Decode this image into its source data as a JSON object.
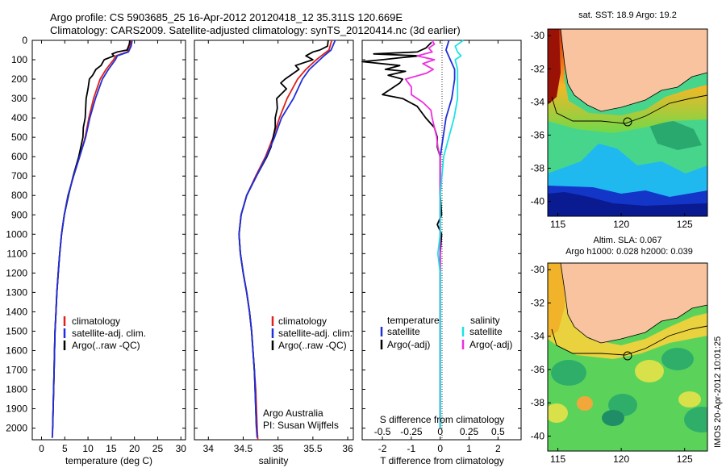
{
  "header": {
    "line1": "Argo profile: CS 5903685_25 16-Apr-2012 20120418_12 35.311S 120.669E",
    "line2": "Climatology: CARS2009. Satellite-adjusted climatology: synTS_20120414.nc (3d earlier)"
  },
  "side_label": "IMOS 20-Apr-2012 10:01:25",
  "colors": {
    "clim": "#e0201a",
    "sat": "#1f2fdc",
    "argo": "#000000",
    "sal_sat": "#1ce3e3",
    "sal_argo": "#ee2ee0",
    "land": "#f8c39e"
  },
  "chart_data": [
    {
      "type": "line",
      "id": "temperature",
      "xlabel": "temperature (deg C)",
      "ylabel": "",
      "xlim": [
        -2,
        31
      ],
      "ylim": [
        2060,
        0
      ],
      "xticks": [
        0,
        5,
        10,
        15,
        20,
        25,
        30
      ],
      "yticks": [
        0,
        100,
        200,
        300,
        400,
        500,
        600,
        700,
        800,
        900,
        1000,
        1100,
        1200,
        1300,
        1400,
        1500,
        1600,
        1700,
        1800,
        1900,
        2000
      ],
      "legend": [
        "climatology",
        "satellite-adj. clim.",
        "Argo(..raw -QC)"
      ],
      "series": [
        {
          "name": "climatology",
          "color": "clim",
          "depth": [
            0,
            30,
            60,
            80,
            100,
            150,
            200,
            300,
            400,
            500,
            600,
            700,
            800,
            900,
            1000,
            1100,
            1200,
            1300,
            1400,
            1500,
            1600,
            1700,
            1800,
            1900,
            2000,
            2050
          ],
          "values": [
            19.2,
            19.1,
            18.5,
            16.0,
            15.5,
            13.9,
            12.6,
            11.2,
            10.2,
            9.4,
            8.2,
            6.9,
            5.7,
            4.9,
            4.3,
            3.9,
            3.6,
            3.3,
            3.1,
            2.9,
            2.8,
            2.7,
            2.6,
            2.5,
            2.4,
            2.3
          ]
        },
        {
          "name": "satellite-adj. clim.",
          "color": "sat",
          "depth": [
            0,
            30,
            60,
            80,
            100,
            150,
            200,
            300,
            400,
            500,
            600,
            700,
            800,
            900,
            1000,
            1100,
            1200,
            1300,
            1400,
            1500,
            1600,
            1700,
            1800,
            1900,
            2000,
            2050
          ],
          "values": [
            19.5,
            19.3,
            18.7,
            16.3,
            15.9,
            14.4,
            13.1,
            11.6,
            10.4,
            9.5,
            8.2,
            6.9,
            5.7,
            4.9,
            4.3,
            3.9,
            3.6,
            3.3,
            3.1,
            2.9,
            2.8,
            2.7,
            2.6,
            2.5,
            2.4,
            2.3
          ]
        },
        {
          "name": "Argo(..raw -QC)",
          "color": "argo",
          "depth": [
            0,
            20,
            50,
            60,
            70,
            80,
            100,
            130,
            150,
            180,
            200,
            250,
            300,
            350,
            400,
            450,
            500,
            600,
            700,
            800,
            900,
            1000,
            1100,
            1200,
            1300,
            1400,
            1500,
            1600,
            1700,
            1800,
            1900,
            2000
          ],
          "values": [
            19.0,
            18.9,
            18.4,
            16.3,
            15.2,
            15.6,
            13.5,
            12.8,
            11.7,
            11.0,
            10.3,
            10.0,
            9.6,
            9.5,
            9.4,
            9.0,
            8.9,
            8.0,
            6.8,
            5.8,
            4.9,
            4.3,
            3.9,
            3.6,
            3.3,
            3.1,
            2.9,
            2.8,
            2.7,
            2.6,
            2.5,
            2.4
          ]
        }
      ]
    },
    {
      "type": "line",
      "id": "salinity",
      "xlabel": "salinity",
      "xlim": [
        33.8,
        36.08
      ],
      "ylim": [
        2060,
        0
      ],
      "xticks": [
        34,
        34.5,
        35,
        35.5,
        36
      ],
      "xtick_labels": [
        "34",
        "34.5",
        "35",
        "35.5",
        "36"
      ],
      "legend": [
        "climatology",
        "satellite-adj. clim.",
        "Argo(..raw -QC)"
      ],
      "annotation": [
        "Argo Australia",
        "PI: Susan Wijffels"
      ],
      "series": [
        {
          "name": "climatology",
          "color": "clim",
          "depth": [
            0,
            50,
            80,
            100,
            150,
            200,
            300,
            400,
            500,
            600,
            700,
            800,
            900,
            1000,
            1100,
            1200,
            1300,
            1400,
            1500,
            1600,
            1700,
            1800,
            1900,
            2000,
            2060
          ],
          "values": [
            35.77,
            35.73,
            35.62,
            35.55,
            35.4,
            35.28,
            35.13,
            35.02,
            34.93,
            34.82,
            34.68,
            34.55,
            34.47,
            34.44,
            34.46,
            34.5,
            34.55,
            34.59,
            34.62,
            34.64,
            34.66,
            34.68,
            34.69,
            34.7,
            34.71
          ]
        },
        {
          "name": "satellite-adj. clim.",
          "color": "sat",
          "depth": [
            0,
            50,
            80,
            100,
            150,
            200,
            300,
            400,
            500,
            600,
            700,
            800,
            900,
            1000,
            1100,
            1200,
            1300,
            1400,
            1500,
            1600,
            1700,
            1800,
            1900,
            2000,
            2050
          ],
          "values": [
            35.82,
            35.76,
            35.66,
            35.6,
            35.45,
            35.35,
            35.22,
            35.05,
            34.95,
            34.83,
            34.69,
            34.55,
            34.47,
            34.44,
            34.46,
            34.5,
            34.55,
            34.59,
            34.62,
            34.64,
            34.66,
            34.67,
            34.68,
            34.69,
            34.7
          ]
        },
        {
          "name": "Argo(..raw -QC)",
          "color": "argo",
          "depth": [
            0,
            30,
            50,
            60,
            80,
            100,
            130,
            150,
            200,
            220,
            250,
            300,
            350,
            400,
            450,
            500,
            550,
            600,
            700,
            800,
            900,
            1000,
            1100,
            1200,
            1300,
            1400,
            1500,
            1600,
            1700,
            1800,
            1900,
            2000
          ],
          "values": [
            35.72,
            35.71,
            35.6,
            35.5,
            35.4,
            35.5,
            35.25,
            35.3,
            35.1,
            35.04,
            35.12,
            34.98,
            34.99,
            34.96,
            34.96,
            34.93,
            34.9,
            34.84,
            34.69,
            34.55,
            34.47,
            34.44,
            34.46,
            34.5,
            34.55,
            34.59,
            34.62,
            34.64,
            34.66,
            34.67,
            34.68,
            34.69
          ]
        }
      ]
    },
    {
      "type": "line",
      "id": "difference",
      "xlabel": "T difference from climatology",
      "xlabel_top": "S difference from climatology",
      "xlim": [
        -2.7,
        2.8
      ],
      "ylim": [
        2060,
        0
      ],
      "xticks": [
        -2,
        -1,
        0,
        1,
        2
      ],
      "xtick_labels": [
        "-2",
        "-1",
        "0",
        "1",
        "2"
      ],
      "xticks_top": [
        -0.5,
        -0.25,
        0,
        0.25,
        0.5
      ],
      "xtick_labels_top": [
        "-0.5",
        "-0.25",
        "0",
        "0.25",
        "0.5"
      ],
      "legend_left": [
        "temperature",
        "satellite",
        "Argo(-adj)"
      ],
      "legend_right": [
        "salinity",
        "satellite",
        "Argo(-adj)"
      ],
      "series": [
        {
          "name": "temperature satellite",
          "color": "sat",
          "depth": [
            0,
            50,
            100,
            150,
            200,
            300,
            400,
            600,
            800,
            1000,
            1200,
            2000
          ],
          "values": [
            0.3,
            0.2,
            0.35,
            0.5,
            0.5,
            0.4,
            0.2,
            0.0,
            0.0,
            0.0,
            0.0,
            0.0
          ]
        },
        {
          "name": "temperature Argo(-adj)",
          "color": "argo",
          "depth": [
            10,
            40,
            60,
            70,
            80,
            90,
            100,
            110,
            130,
            150,
            160,
            180,
            200,
            220,
            250,
            280,
            300,
            340,
            400,
            450,
            500,
            550,
            600,
            700,
            800,
            900,
            950,
            1000,
            1100,
            1200,
            1400,
            1600,
            1800,
            2000
          ],
          "values": [
            -0.3,
            -0.5,
            -0.8,
            -2.3,
            -0.7,
            -1.4,
            -2.0,
            -2.7,
            -1.4,
            -1.9,
            -1.2,
            -1.8,
            -1.3,
            -1.4,
            -1.7,
            -2.0,
            -1.3,
            -0.8,
            -0.5,
            -0.2,
            -0.1,
            -0.1,
            0.0,
            0.0,
            0.0,
            0.05,
            -0.1,
            0.05,
            0.0,
            0.0,
            0.0,
            0.0,
            0.0,
            0.0
          ]
        },
        {
          "name": "salinity satellite",
          "color": "sal_sat",
          "depth": [
            0,
            30,
            60,
            80,
            100,
            150,
            200,
            300,
            400,
            600,
            800,
            1000,
            1100,
            1200,
            1400,
            1600,
            2000
          ],
          "values": [
            0.2,
            0.13,
            0.15,
            0.18,
            0.13,
            0.15,
            0.15,
            0.15,
            0.12,
            0.03,
            0.0,
            0.0,
            -0.02,
            0.0,
            0.0,
            0.0,
            0.0
          ]
        },
        {
          "name": "salinity Argo(-adj)",
          "color": "sal_argo",
          "depth": [
            0,
            20,
            40,
            60,
            80,
            100,
            120,
            150,
            170,
            200,
            240,
            280,
            320,
            360,
            400,
            450,
            500,
            550,
            600,
            700,
            800,
            1000,
            2000
          ],
          "values": [
            -0.07,
            -0.05,
            -0.1,
            -0.07,
            -0.2,
            -0.05,
            -0.15,
            -0.06,
            -0.12,
            -0.3,
            -0.25,
            -0.25,
            -0.15,
            -0.08,
            -0.07,
            -0.05,
            -0.03,
            -0.02,
            0.0,
            0.0,
            0.0,
            0.0,
            0.0
          ]
        }
      ]
    },
    {
      "type": "heatmap",
      "id": "sst_map",
      "title": "sat. SST: 18.9 Argo: 19.2",
      "xticks": [
        115,
        120,
        125
      ],
      "yticks": [
        -30,
        -32,
        -34,
        -36,
        -38,
        -40
      ],
      "xlim": [
        114.2,
        126.8
      ],
      "ylim": [
        -40.9,
        -29.6
      ],
      "marker": {
        "lon": 120.669,
        "lat": -35.311
      }
    },
    {
      "type": "heatmap",
      "id": "sla_map",
      "title": "Altim. SLA: 0.067",
      "subtitle": "Argo h1000: 0.028 h2000: 0.039",
      "xticks": [
        115,
        120,
        125
      ],
      "yticks": [
        -30,
        -32,
        -34,
        -36,
        -38,
        -40
      ],
      "xlim": [
        114.2,
        126.8
      ],
      "ylim": [
        -40.9,
        -29.6
      ],
      "marker": {
        "lon": 120.669,
        "lat": -35.311
      }
    }
  ]
}
